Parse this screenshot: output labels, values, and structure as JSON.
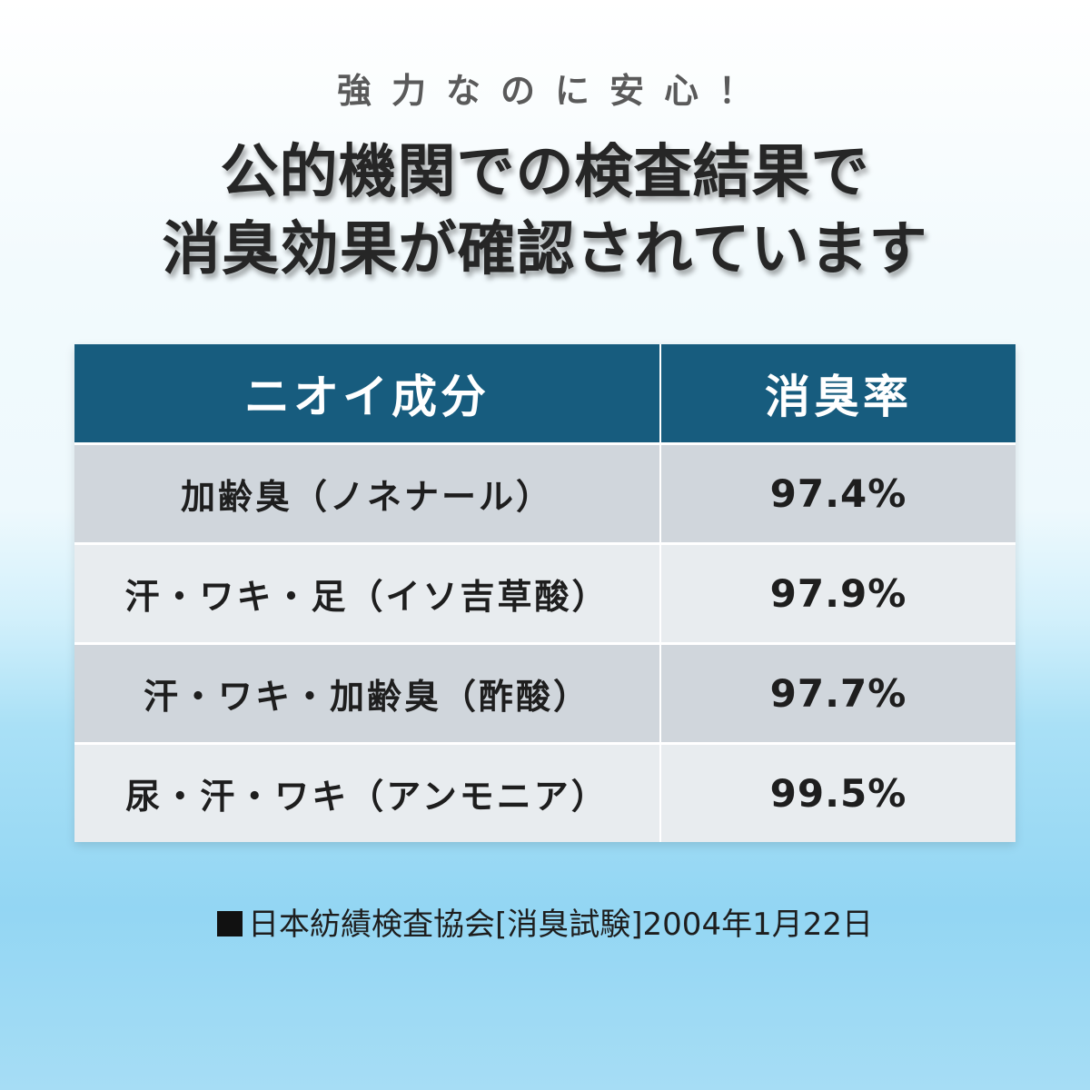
{
  "header": {
    "eyebrow": "強力なのに安心！",
    "headline_line1": "公的機関での検査結果で",
    "headline_line2": "消臭効果が確認されています"
  },
  "table": {
    "columns": [
      "ニオイ成分",
      "消臭率"
    ],
    "rows": [
      {
        "component": "加齢臭（ノネナール）",
        "rate": "97.4%"
      },
      {
        "component": "汗・ワキ・足（イソ吉草酸）",
        "rate": "97.9%"
      },
      {
        "component": "汗・ワキ・加齢臭（酢酸）",
        "rate": "97.7%"
      },
      {
        "component": "尿・汗・ワキ（アンモニア）",
        "rate": "99.5%"
      }
    ],
    "colors": {
      "header_bg": "#175c7e",
      "row_odd_bg": "#d0d6dc",
      "row_even_bg": "#e8ecef"
    }
  },
  "footnote": {
    "marker_icon": "black-square-icon",
    "text": "日本紡績検査協会[消臭試験]2004年1月22日"
  }
}
